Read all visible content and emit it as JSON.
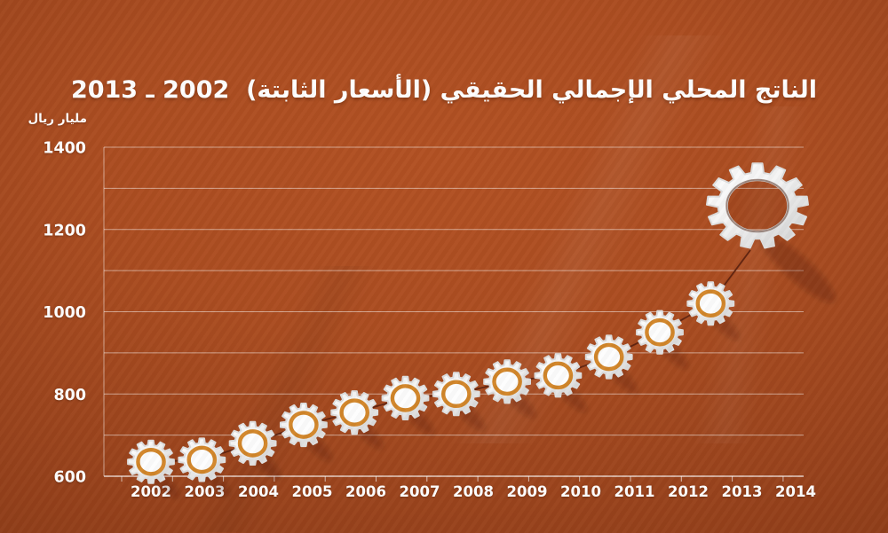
{
  "chart_data": {
    "type": "line",
    "title": "الناتج المحلي الإجمالي الحقيقي (الأسعار الثابتة)  2002 ـ 2013",
    "ylabel": "مليار ريال",
    "xlabel": "",
    "x": [
      2002,
      2003,
      2004,
      2005,
      2006,
      2007,
      2008,
      2009,
      2010,
      2011,
      2012,
      2013
    ],
    "values": [
      635,
      640,
      680,
      725,
      755,
      790,
      800,
      830,
      845,
      890,
      950,
      1020
    ],
    "x_axis_labels": [
      "2002",
      "2003",
      "2004",
      "2005",
      "2006",
      "2007",
      "2008",
      "2009",
      "2010",
      "2011",
      "2012",
      "2013",
      "2014"
    ],
    "y_tick_labels": [
      600,
      800,
      1000,
      1200,
      1400
    ],
    "ylim": [
      600,
      1400
    ],
    "gridline_step": 100,
    "grid": "horizontal gridlines every 100, left and bottom axis lines, tick marks below x-axis",
    "legend": "none",
    "marker": "gear-icon",
    "decoration": "large hollow gear at top right linked to last point by trend line",
    "colors": {
      "background_center": "#b25123",
      "background_edge": "#7c3313",
      "text": "#ffffff",
      "gridline": "rgba(255,255,255,0.5)",
      "axis_line": "rgba(255,255,255,0.75)",
      "gear_body": "#f4f4f4",
      "gear_ring": "#d2862a",
      "trend_line": "#5e2310"
    }
  }
}
